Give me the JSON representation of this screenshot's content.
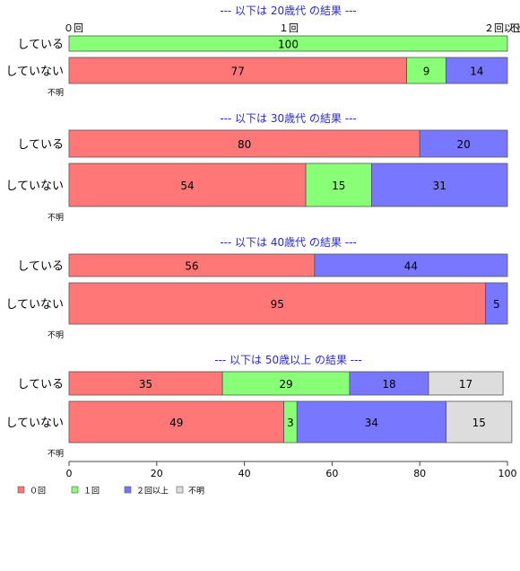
{
  "chart_data": {
    "type": "bar",
    "orientation": "horizontal",
    "stacked": true,
    "xlim": [
      0,
      100
    ],
    "x_ticks": [
      "0",
      "20",
      "40",
      "60",
      "80",
      "100"
    ],
    "top_axis_labels": [
      "０回",
      "１回",
      "２回以上",
      "不明"
    ],
    "legend_position": "bottom-left",
    "legend": [
      {
        "name": "０回",
        "color": "#ff7777"
      },
      {
        "name": "１回",
        "color": "#88ff77"
      },
      {
        "name": "２回以上",
        "color": "#7777ff"
      },
      {
        "name": "不明",
        "color": "#dddddd"
      }
    ],
    "panels": [
      {
        "title": "--- 以下は 20歳代 の結果 ---",
        "rows": [
          {
            "label": "している",
            "values": [
              0,
              100,
              0,
              0
            ]
          },
          {
            "label": "していない",
            "values": [
              77,
              9,
              14,
              0
            ]
          }
        ],
        "unknown_label": "不明"
      },
      {
        "title": "--- 以下は 30歳代 の結果 ---",
        "rows": [
          {
            "label": "している",
            "values": [
              80,
              0,
              20,
              0
            ]
          },
          {
            "label": "していない",
            "values": [
              54,
              15,
              31,
              0
            ]
          }
        ],
        "unknown_label": "不明"
      },
      {
        "title": "--- 以下は 40歳代 の結果 ---",
        "rows": [
          {
            "label": "している",
            "values": [
              56,
              0,
              44,
              0
            ]
          },
          {
            "label": "していない",
            "values": [
              95,
              0,
              5,
              0
            ]
          }
        ],
        "unknown_label": "不明"
      },
      {
        "title": "--- 以下は 50歳以上 の結果 ---",
        "rows": [
          {
            "label": "している",
            "values": [
              35,
              29,
              18,
              17
            ]
          },
          {
            "label": "していない",
            "values": [
              49,
              3,
              34,
              15
            ]
          }
        ],
        "unknown_label": "不明"
      }
    ]
  }
}
